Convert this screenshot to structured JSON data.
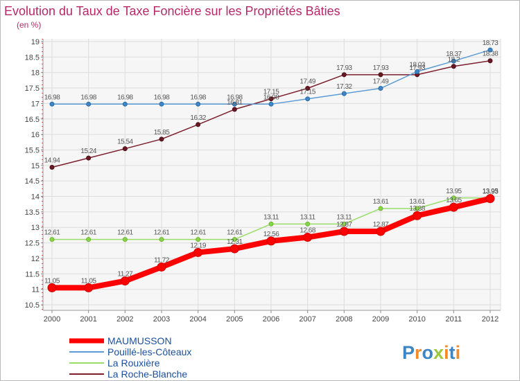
{
  "chart_data": {
    "type": "line",
    "title": "Evolution du Taux de Taxe Foncière sur les Propriétés Bâties",
    "subtitle": "(en %)",
    "xlabel": "",
    "ylabel": "",
    "x": [
      "2000",
      "2001",
      "2002",
      "2003",
      "2004",
      "2005",
      "2006",
      "2007",
      "2008",
      "2009",
      "2010",
      "2011",
      "2012"
    ],
    "ylim": [
      10.5,
      19
    ],
    "yticks": [
      "10.5",
      "11",
      "11.5",
      "12",
      "12.5",
      "13",
      "13.5",
      "14",
      "14.5",
      "15",
      "15.5",
      "16",
      "16.5",
      "17",
      "17.5",
      "18",
      "18.5",
      "19"
    ],
    "grid": true,
    "legend_position": "bottom-left",
    "series": [
      {
        "name": "MAUMUSSON",
        "color": "#ff0000",
        "values": [
          11.05,
          11.05,
          11.27,
          11.72,
          12.19,
          12.31,
          12.56,
          12.68,
          12.87,
          12.87,
          13.38,
          13.65,
          13.93
        ],
        "labels": [
          "11.05",
          "11.05",
          "11.27",
          "11.72",
          "12.19",
          "12.31",
          "12.56",
          "12.68",
          "12.87",
          "12.87",
          "13.38",
          "13.65",
          "13.93"
        ]
      },
      {
        "name": "Pouillé-les-Côteaux",
        "color": "#5b9bd5",
        "values": [
          16.98,
          16.98,
          16.98,
          16.98,
          16.98,
          16.98,
          16.98,
          17.15,
          17.32,
          17.49,
          18.03,
          18.37,
          18.73
        ],
        "labels": [
          "16.98",
          "16.98",
          "16.98",
          "16.98",
          "16.98",
          "16.98",
          "16.98",
          "17.15",
          "17.32",
          "17.49",
          "18.03",
          "18.37",
          "18.73"
        ]
      },
      {
        "name": "La Rouxière",
        "color": "#99dd66",
        "values": [
          12.61,
          12.61,
          12.61,
          12.61,
          12.61,
          12.61,
          13.11,
          13.11,
          13.11,
          13.61,
          13.61,
          13.95,
          13.95
        ],
        "labels": [
          "12.61",
          "12.61",
          "12.61",
          "12.61",
          "12.61",
          "12.61",
          "13.11",
          "13.11",
          "13.11",
          "13.61",
          "13.61",
          "13.95",
          "13.95"
        ]
      },
      {
        "name": "La Roche-Blanche",
        "color": "#7b1f2c",
        "values": [
          14.94,
          15.24,
          15.54,
          15.85,
          16.32,
          16.81,
          17.15,
          17.49,
          17.93,
          17.93,
          17.93,
          18.2,
          18.38
        ],
        "labels": [
          "14.94",
          "15.24",
          "15.54",
          "15.85",
          "16.32",
          "16.81",
          "17.15",
          "17.49",
          "17.93",
          "17.93",
          "17.93",
          "18.2",
          "18.38"
        ]
      }
    ]
  },
  "logo": {
    "text": "Proxiti",
    "colors": [
      "#3d86c6",
      "#f28c28",
      "#3d86c6",
      "#9bc93e",
      "#f28c28",
      "#3d86c6",
      "#f28c28"
    ]
  }
}
